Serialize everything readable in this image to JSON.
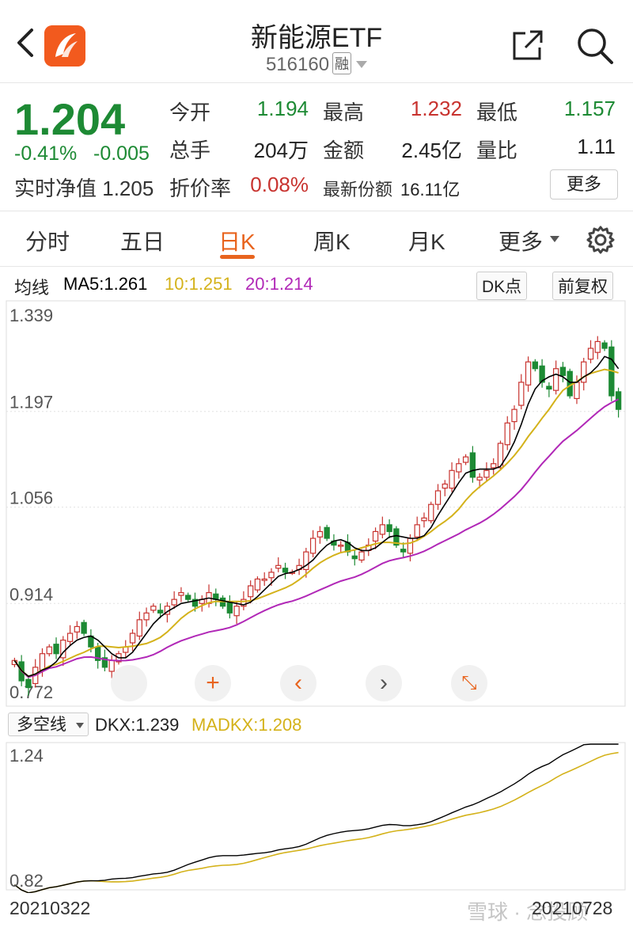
{
  "header": {
    "title": "新能源ETF",
    "code": "516160",
    "margin_badge": "融",
    "brand_color": "#f25a1e"
  },
  "quote": {
    "price": "1.204",
    "change_pct": "-0.41%",
    "change_amt": "-0.005",
    "nav_label": "实时净值",
    "nav_value": "1.205",
    "open_label": "今开",
    "open_value": "1.194",
    "high_label": "最高",
    "high_value": "1.232",
    "low_label": "最低",
    "low_value": "1.157",
    "volume_label": "总手",
    "volume_value": "204万",
    "amount_label": "金额",
    "amount_value": "2.45亿",
    "ratio_label": "量比",
    "ratio_value": "1.11",
    "discount_label": "折价率",
    "discount_value": "0.08%",
    "shares_label": "最新份额",
    "shares_value": "16.11亿",
    "more_button": "更多",
    "down_color": "#1d8a34",
    "up_color": "#c8332f"
  },
  "tabs": [
    {
      "label": "分时"
    },
    {
      "label": "五日"
    },
    {
      "label": "日K",
      "active": true
    },
    {
      "label": "周K"
    },
    {
      "label": "月K"
    },
    {
      "label": "更多"
    }
  ],
  "ma_legend": {
    "label": "均线",
    "ma5": "MA5:1.261",
    "ma10": "10:1.251",
    "ma20": "20:1.214",
    "dk_button": "DK点",
    "adjust_button": "前复权"
  },
  "kline_axis": {
    "ticks": [
      "1.339",
      "1.197",
      "1.056",
      "0.914",
      "0.772"
    ]
  },
  "dkx": {
    "dropdown": "多空线",
    "dkx_label": "DKX:1.239",
    "madkx_label": "MADKX:1.208",
    "axis_top": "1.24",
    "axis_bottom": "0.82"
  },
  "dates": {
    "start": "20210322",
    "end": "20210728"
  },
  "watermark": "雪球 · 念投顾",
  "chart_data": [
    {
      "type": "candlestick",
      "title": "",
      "ylim": [
        0.772,
        1.339
      ],
      "y_ticks": [
        1.339,
        1.197,
        1.056,
        0.914,
        0.772
      ],
      "x_range": [
        "20210322",
        "20210728"
      ],
      "series": [
        {
          "name": "MA5",
          "last": 1.261,
          "color": "#000000"
        },
        {
          "name": "10",
          "last": 1.251,
          "color": "#d4b21a"
        },
        {
          "name": "20",
          "last": 1.214,
          "color": "#b128b7"
        }
      ],
      "close": [
        0.83,
        0.8,
        0.79,
        0.82,
        0.84,
        0.85,
        0.84,
        0.86,
        0.87,
        0.88,
        0.87,
        0.85,
        0.83,
        0.82,
        0.83,
        0.84,
        0.85,
        0.87,
        0.89,
        0.9,
        0.91,
        0.9,
        0.91,
        0.92,
        0.93,
        0.92,
        0.91,
        0.92,
        0.93,
        0.92,
        0.91,
        0.9,
        0.91,
        0.92,
        0.94,
        0.95,
        0.95,
        0.96,
        0.97,
        0.96,
        0.96,
        0.97,
        0.99,
        1.01,
        1.02,
        1.01,
        1.0,
        1.0,
        0.99,
        0.98,
        0.99,
        1.0,
        1.02,
        1.03,
        1.02,
        1.0,
        0.99,
        1.01,
        1.03,
        1.04,
        1.06,
        1.08,
        1.09,
        1.11,
        1.12,
        1.13,
        1.1,
        1.1,
        1.11,
        1.12,
        1.15,
        1.18,
        1.2,
        1.24,
        1.27,
        1.26,
        1.24,
        1.23,
        1.26,
        1.25,
        1.22,
        1.24,
        1.27,
        1.29,
        1.3,
        1.29,
        1.22,
        1.2
      ]
    },
    {
      "type": "line",
      "title": "",
      "ylim": [
        0.82,
        1.24
      ],
      "series": [
        {
          "name": "DKX",
          "last": 1.239,
          "color": "#000000"
        },
        {
          "name": "MADKX",
          "last": 1.208,
          "color": "#d4b21a"
        }
      ]
    }
  ]
}
